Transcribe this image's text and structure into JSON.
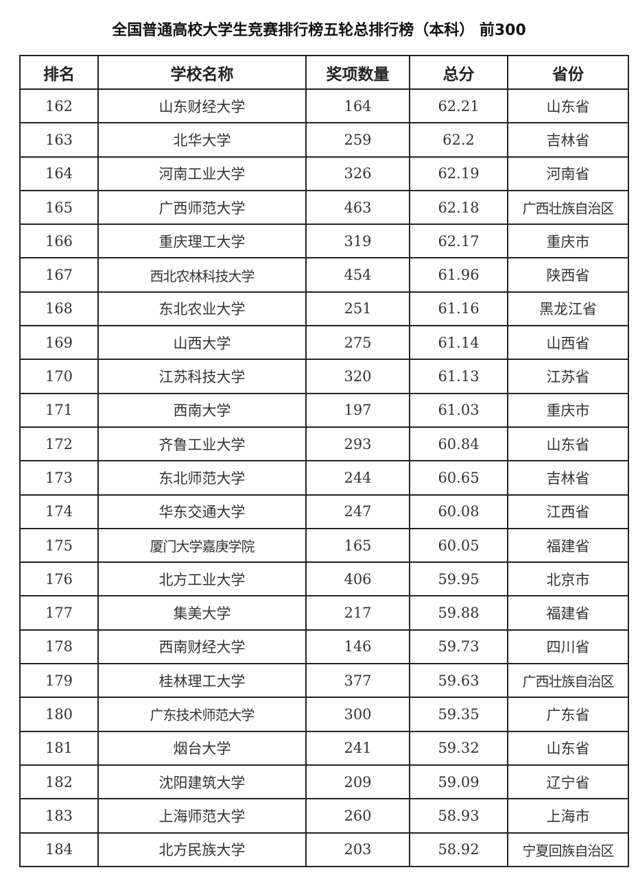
{
  "title": "全国普通高校大学生竞赛排行榜五轮总排行榜（本科） 前300",
  "columns": [
    "排名",
    "学校名称",
    "奖项数量",
    "总分",
    "省份"
  ],
  "rows": [
    [
      "162",
      "山东财经大学",
      "164",
      "62.21",
      "山东省"
    ],
    [
      "163",
      "北华大学",
      "259",
      "62.2",
      "吉林省"
    ],
    [
      "164",
      "河南工业大学",
      "326",
      "62.19",
      "河南省"
    ],
    [
      "165",
      "广西师范大学",
      "463",
      "62.18",
      "广西壮族自治区"
    ],
    [
      "166",
      "重庆理工大学",
      "319",
      "62.17",
      "重庆市"
    ],
    [
      "167",
      "西北农林科技大学",
      "454",
      "61.96",
      "陕西省"
    ],
    [
      "168",
      "东北农业大学",
      "251",
      "61.16",
      "黑龙江省"
    ],
    [
      "169",
      "山西大学",
      "275",
      "61.14",
      "山西省"
    ],
    [
      "170",
      "江苏科技大学",
      "320",
      "61.13",
      "江苏省"
    ],
    [
      "171",
      "西南大学",
      "197",
      "61.03",
      "重庆市"
    ],
    [
      "172",
      "齐鲁工业大学",
      "293",
      "60.84",
      "山东省"
    ],
    [
      "173",
      "东北师范大学",
      "244",
      "60.65",
      "吉林省"
    ],
    [
      "174",
      "华东交通大学",
      "247",
      "60.08",
      "江西省"
    ],
    [
      "175",
      "厦门大学嘉庚学院",
      "165",
      "60.05",
      "福建省"
    ],
    [
      "176",
      "北方工业大学",
      "406",
      "59.95",
      "北京市"
    ],
    [
      "177",
      "集美大学",
      "217",
      "59.88",
      "福建省"
    ],
    [
      "178",
      "西南财经大学",
      "146",
      "59.73",
      "四川省"
    ],
    [
      "179",
      "桂林理工大学",
      "377",
      "59.63",
      "广西壮族自治区"
    ],
    [
      "180",
      "广东技术师范大学",
      "300",
      "59.35",
      "广东省"
    ],
    [
      "181",
      "烟台大学",
      "241",
      "59.32",
      "山东省"
    ],
    [
      "182",
      "沈阳建筑大学",
      "209",
      "59.09",
      "辽宁省"
    ],
    [
      "183",
      "上海师范大学",
      "260",
      "58.93",
      "上海市"
    ],
    [
      "184",
      "北方民族大学",
      "203",
      "58.92",
      "宁夏回族自治区"
    ]
  ]
}
